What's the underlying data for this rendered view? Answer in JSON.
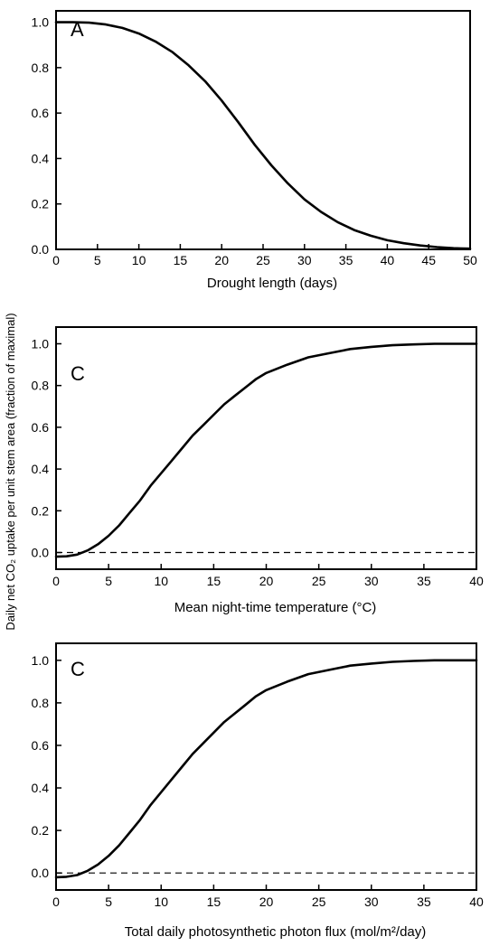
{
  "ylabel": "Daily net CO₂ uptake per unit stem area (fraction of maximal)",
  "chart_data": [
    {
      "type": "line",
      "panel_label": "A",
      "xlabel": "Drought length (days)",
      "xlim": [
        0,
        50
      ],
      "ylim": [
        0,
        1.05
      ],
      "x_ticks": [
        0,
        5,
        10,
        15,
        20,
        25,
        30,
        35,
        40,
        45,
        50
      ],
      "y_ticks": [
        "0.0",
        "0.2",
        "0.4",
        "0.6",
        "0.8",
        "1.0"
      ],
      "zero_dashed_line": false,
      "series": [
        {
          "x": [
            0,
            2,
            4,
            6,
            8,
            10,
            12,
            14,
            16,
            18,
            20,
            22,
            24,
            26,
            28,
            30,
            32,
            34,
            36,
            38,
            40,
            42,
            44,
            46,
            48,
            50
          ],
          "y": [
            1.0,
            1.0,
            0.998,
            0.99,
            0.975,
            0.95,
            0.915,
            0.87,
            0.81,
            0.74,
            0.655,
            0.56,
            0.46,
            0.37,
            0.29,
            0.22,
            0.165,
            0.12,
            0.085,
            0.06,
            0.04,
            0.027,
            0.017,
            0.01,
            0.005,
            0.003
          ]
        }
      ]
    },
    {
      "type": "line",
      "panel_label": "C",
      "xlabel": "Mean night-time temperature (°C)",
      "xlim": [
        0,
        40
      ],
      "ylim": [
        -0.08,
        1.08
      ],
      "x_ticks": [
        0,
        5,
        10,
        15,
        20,
        25,
        30,
        35,
        40
      ],
      "y_ticks": [
        "0.0",
        "0.2",
        "0.4",
        "0.6",
        "0.8",
        "1.0"
      ],
      "zero_dashed_line": true,
      "series": [
        {
          "x": [
            0,
            1,
            2,
            3,
            4,
            5,
            6,
            7,
            8,
            9,
            10,
            11,
            12,
            13,
            14,
            15,
            16,
            17,
            18,
            19,
            20,
            22,
            24,
            26,
            28,
            30,
            32,
            34,
            36,
            38,
            40
          ],
          "y": [
            -0.02,
            -0.018,
            -0.01,
            0.01,
            0.04,
            0.08,
            0.13,
            0.19,
            0.25,
            0.32,
            0.38,
            0.44,
            0.5,
            0.56,
            0.61,
            0.66,
            0.71,
            0.75,
            0.79,
            0.83,
            0.86,
            0.9,
            0.935,
            0.955,
            0.975,
            0.985,
            0.993,
            0.997,
            1.0,
            1.0,
            1.0
          ]
        }
      ]
    },
    {
      "type": "line",
      "panel_label": "C",
      "xlabel": "Total daily photosynthetic photon flux (mol/m²/day)",
      "xlim": [
        0,
        40
      ],
      "ylim": [
        -0.08,
        1.08
      ],
      "x_ticks": [
        0,
        5,
        10,
        15,
        20,
        25,
        30,
        35,
        40
      ],
      "y_ticks": [
        "0.0",
        "0.2",
        "0.4",
        "0.6",
        "0.8",
        "1.0"
      ],
      "zero_dashed_line": true,
      "series": [
        {
          "x": [
            0,
            1,
            2,
            3,
            4,
            5,
            6,
            7,
            8,
            9,
            10,
            11,
            12,
            13,
            14,
            15,
            16,
            17,
            18,
            19,
            20,
            22,
            24,
            26,
            28,
            30,
            32,
            34,
            36,
            38,
            40
          ],
          "y": [
            -0.02,
            -0.018,
            -0.01,
            0.01,
            0.04,
            0.08,
            0.13,
            0.19,
            0.25,
            0.32,
            0.38,
            0.44,
            0.5,
            0.56,
            0.61,
            0.66,
            0.71,
            0.75,
            0.79,
            0.83,
            0.86,
            0.9,
            0.935,
            0.955,
            0.975,
            0.985,
            0.993,
            0.997,
            1.0,
            1.0,
            1.0
          ]
        }
      ]
    }
  ]
}
